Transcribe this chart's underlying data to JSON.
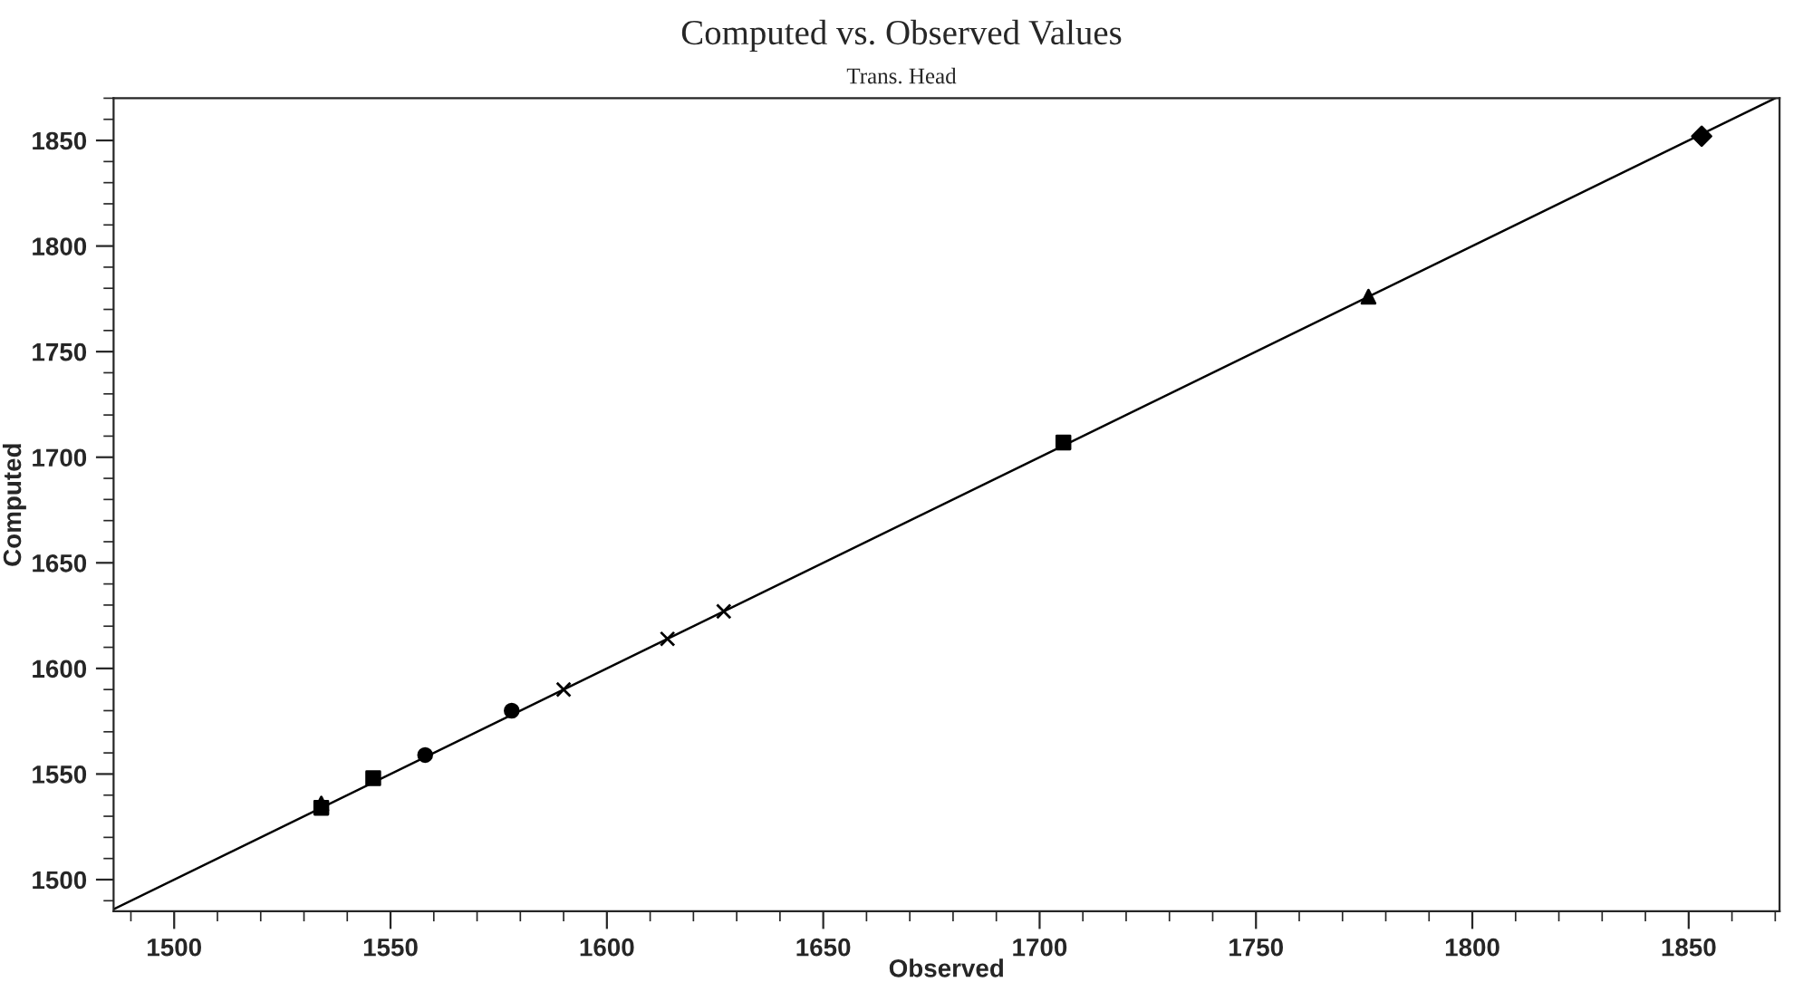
{
  "chart_data": {
    "type": "scatter",
    "title": "Computed vs. Observed Values",
    "subtitle": "Trans. Head",
    "xlabel": "Observed",
    "ylabel": "Computed",
    "xlim": [
      1486,
      1871
    ],
    "ylim": [
      1485,
      1870
    ],
    "xticks": [
      1500,
      1550,
      1600,
      1650,
      1700,
      1750,
      1800,
      1850
    ],
    "yticks": [
      1500,
      1550,
      1600,
      1650,
      1700,
      1750,
      1800,
      1850
    ],
    "grid": false,
    "legend": false,
    "series": [
      {
        "type": "line",
        "color": "#000000",
        "marker": "none",
        "line_style": "solid",
        "x": [
          1486,
          1870
        ],
        "values": [
          1486,
          1870
        ]
      },
      {
        "color": "#000000",
        "marker": "square",
        "x": [
          1534
        ],
        "values": [
          1534
        ]
      },
      {
        "color": "#000000",
        "marker": "triangle",
        "x": [
          1534
        ],
        "values": [
          1536
        ]
      },
      {
        "color": "#000000",
        "marker": "square",
        "x": [
          1546
        ],
        "values": [
          1548
        ]
      },
      {
        "color": "#000000",
        "marker": "circle",
        "x": [
          1558
        ],
        "values": [
          1559
        ]
      },
      {
        "color": "#000000",
        "marker": "circle",
        "x": [
          1578
        ],
        "values": [
          1580
        ]
      },
      {
        "color": "#000000",
        "marker": "cross",
        "x": [
          1590
        ],
        "values": [
          1590
        ]
      },
      {
        "color": "#000000",
        "marker": "cross",
        "x": [
          1614
        ],
        "values": [
          1614
        ]
      },
      {
        "color": "#000000",
        "marker": "cross",
        "x": [
          1627
        ],
        "values": [
          1627
        ]
      },
      {
        "color": "#000000",
        "marker": "square",
        "x": [
          1705.5
        ],
        "values": [
          1707
        ]
      },
      {
        "color": "#000000",
        "marker": "triangle",
        "x": [
          1776
        ],
        "values": [
          1776
        ]
      },
      {
        "color": "#000000",
        "marker": "diamond",
        "x": [
          1853
        ],
        "values": [
          1852
        ]
      }
    ]
  }
}
